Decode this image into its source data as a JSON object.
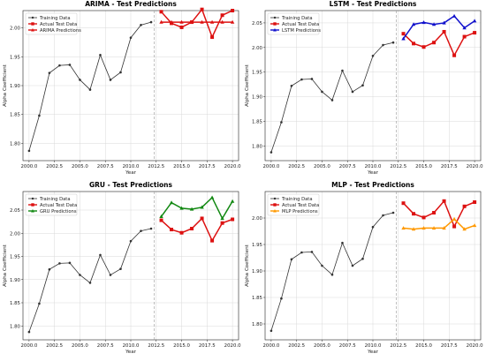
{
  "chart_data": [
    {
      "type": "line",
      "title": "ARIMA - Test Predictions",
      "xlabel": "Year",
      "ylabel": "Alpha Coefficient",
      "xlim": [
        1999.4,
        2020.6
      ],
      "ylim": [
        1.77,
        2.03
      ],
      "xticks": [
        "2000.0",
        "2002.5",
        "2005.0",
        "2007.5",
        "2010.0",
        "2012.5",
        "2015.0",
        "2017.5",
        "2020.0"
      ],
      "yticks": [
        "1.80",
        "1.85",
        "1.90",
        "1.95",
        "2.00"
      ],
      "split_year": 2012.3,
      "grid": true,
      "legend": "top-left",
      "series": [
        {
          "name": "Training Data",
          "color": "#333333",
          "marker": "dot",
          "x": [
            2000,
            2001,
            2002,
            2003,
            2004,
            2005,
            2006,
            2007,
            2008,
            2009,
            2010,
            2011,
            2012
          ],
          "y": [
            1.787,
            1.848,
            1.922,
            1.935,
            1.936,
            1.91,
            1.893,
            1.953,
            1.91,
            1.923,
            1.983,
            2.005,
            2.01
          ]
        },
        {
          "name": "Actual Test Data",
          "color": "#dd1111",
          "marker": "square",
          "x": [
            2013,
            2014,
            2015,
            2016,
            2017,
            2018,
            2019,
            2020
          ],
          "y": [
            2.028,
            2.008,
            2.001,
            2.01,
            2.032,
            1.984,
            2.022,
            2.03
          ]
        },
        {
          "name": "ARIMA Predictions",
          "color": "#dd1111",
          "marker": "triangle",
          "x": [
            2013,
            2014,
            2015,
            2016,
            2017,
            2018,
            2019,
            2020
          ],
          "y": [
            2.01,
            2.01,
            2.01,
            2.01,
            2.01,
            2.01,
            2.01,
            2.01
          ]
        }
      ]
    },
    {
      "type": "line",
      "title": "LSTM - Test Predictions",
      "xlabel": "Year",
      "ylabel": "Alpha Coefficient",
      "xlim": [
        1999.4,
        2020.6
      ],
      "ylim": [
        1.77,
        2.075
      ],
      "xticks": [
        "2000.0",
        "2002.5",
        "2005.0",
        "2007.5",
        "2010.0",
        "2012.5",
        "2015.0",
        "2017.5",
        "2020.0"
      ],
      "yticks": [
        "1.80",
        "1.85",
        "1.90",
        "1.95",
        "2.00",
        "2.05"
      ],
      "split_year": 2012.3,
      "grid": true,
      "legend": "top-left",
      "series": [
        {
          "name": "Training Data",
          "color": "#333333",
          "marker": "dot",
          "x": [
            2000,
            2001,
            2002,
            2003,
            2004,
            2005,
            2006,
            2007,
            2008,
            2009,
            2010,
            2011,
            2012
          ],
          "y": [
            1.787,
            1.848,
            1.922,
            1.935,
            1.936,
            1.91,
            1.893,
            1.953,
            1.91,
            1.923,
            1.983,
            2.005,
            2.01
          ]
        },
        {
          "name": "Actual Test Data",
          "color": "#dd1111",
          "marker": "square",
          "x": [
            2013,
            2014,
            2015,
            2016,
            2017,
            2018,
            2019,
            2020
          ],
          "y": [
            2.028,
            2.008,
            2.001,
            2.01,
            2.032,
            1.984,
            2.022,
            2.03
          ]
        },
        {
          "name": "LSTM Predictions",
          "color": "#1111cc",
          "marker": "triangle",
          "x": [
            2013,
            2014,
            2015,
            2016,
            2017,
            2018,
            2019,
            2020
          ],
          "y": [
            2.018,
            2.047,
            2.051,
            2.047,
            2.05,
            2.064,
            2.04,
            2.054
          ]
        }
      ]
    },
    {
      "type": "line",
      "title": "GRU - Test Predictions",
      "xlabel": "Year",
      "ylabel": "Alpha Coefficient",
      "xlim": [
        1999.4,
        2020.6
      ],
      "ylim": [
        1.77,
        2.09
      ],
      "xticks": [
        "2000.0",
        "2002.5",
        "2005.0",
        "2007.5",
        "2010.0",
        "2012.5",
        "2015.0",
        "2017.5",
        "2020.0"
      ],
      "yticks": [
        "1.80",
        "1.85",
        "1.90",
        "1.95",
        "2.00",
        "2.05"
      ],
      "split_year": 2012.3,
      "grid": true,
      "legend": "top-left",
      "series": [
        {
          "name": "Training Data",
          "color": "#333333",
          "marker": "dot",
          "x": [
            2000,
            2001,
            2002,
            2003,
            2004,
            2005,
            2006,
            2007,
            2008,
            2009,
            2010,
            2011,
            2012
          ],
          "y": [
            1.787,
            1.848,
            1.922,
            1.935,
            1.936,
            1.91,
            1.893,
            1.953,
            1.91,
            1.923,
            1.983,
            2.005,
            2.01
          ]
        },
        {
          "name": "Actual Test Data",
          "color": "#dd1111",
          "marker": "square",
          "x": [
            2013,
            2014,
            2015,
            2016,
            2017,
            2018,
            2019,
            2020
          ],
          "y": [
            2.028,
            2.008,
            2.001,
            2.01,
            2.032,
            1.984,
            2.022,
            2.03
          ]
        },
        {
          "name": "GRU Predictions",
          "color": "#118811",
          "marker": "triangle",
          "x": [
            2013,
            2014,
            2015,
            2016,
            2017,
            2018,
            2019,
            2020
          ],
          "y": [
            2.036,
            2.066,
            2.054,
            2.052,
            2.056,
            2.077,
            2.032,
            2.069
          ]
        }
      ]
    },
    {
      "type": "line",
      "title": "MLP - Test Predictions",
      "xlabel": "Year",
      "ylabel": "Alpha Coefficient",
      "xlim": [
        1999.4,
        2020.6
      ],
      "ylim": [
        1.77,
        2.05
      ],
      "xticks": [
        "2000.0",
        "2002.5",
        "2005.0",
        "2007.5",
        "2010.0",
        "2012.5",
        "2015.0",
        "2017.5",
        "2020.0"
      ],
      "yticks": [
        "1.80",
        "1.85",
        "1.90",
        "1.95",
        "2.00"
      ],
      "split_year": 2012.3,
      "grid": true,
      "legend": "top-left",
      "series": [
        {
          "name": "Training Data",
          "color": "#333333",
          "marker": "dot",
          "x": [
            2000,
            2001,
            2002,
            2003,
            2004,
            2005,
            2006,
            2007,
            2008,
            2009,
            2010,
            2011,
            2012
          ],
          "y": [
            1.787,
            1.848,
            1.922,
            1.935,
            1.936,
            1.91,
            1.893,
            1.953,
            1.91,
            1.923,
            1.983,
            2.005,
            2.01
          ]
        },
        {
          "name": "Actual Test Data",
          "color": "#dd1111",
          "marker": "square",
          "x": [
            2013,
            2014,
            2015,
            2016,
            2017,
            2018,
            2019,
            2020
          ],
          "y": [
            2.028,
            2.008,
            2.001,
            2.01,
            2.032,
            1.984,
            2.022,
            2.03
          ]
        },
        {
          "name": "MLP Predictions",
          "color": "#ff9900",
          "marker": "triangle",
          "x": [
            2013,
            2014,
            2015,
            2016,
            2017,
            2018,
            2019,
            2020
          ],
          "y": [
            1.981,
            1.979,
            1.981,
            1.981,
            1.981,
            1.998,
            1.979,
            1.986
          ]
        }
      ]
    }
  ]
}
